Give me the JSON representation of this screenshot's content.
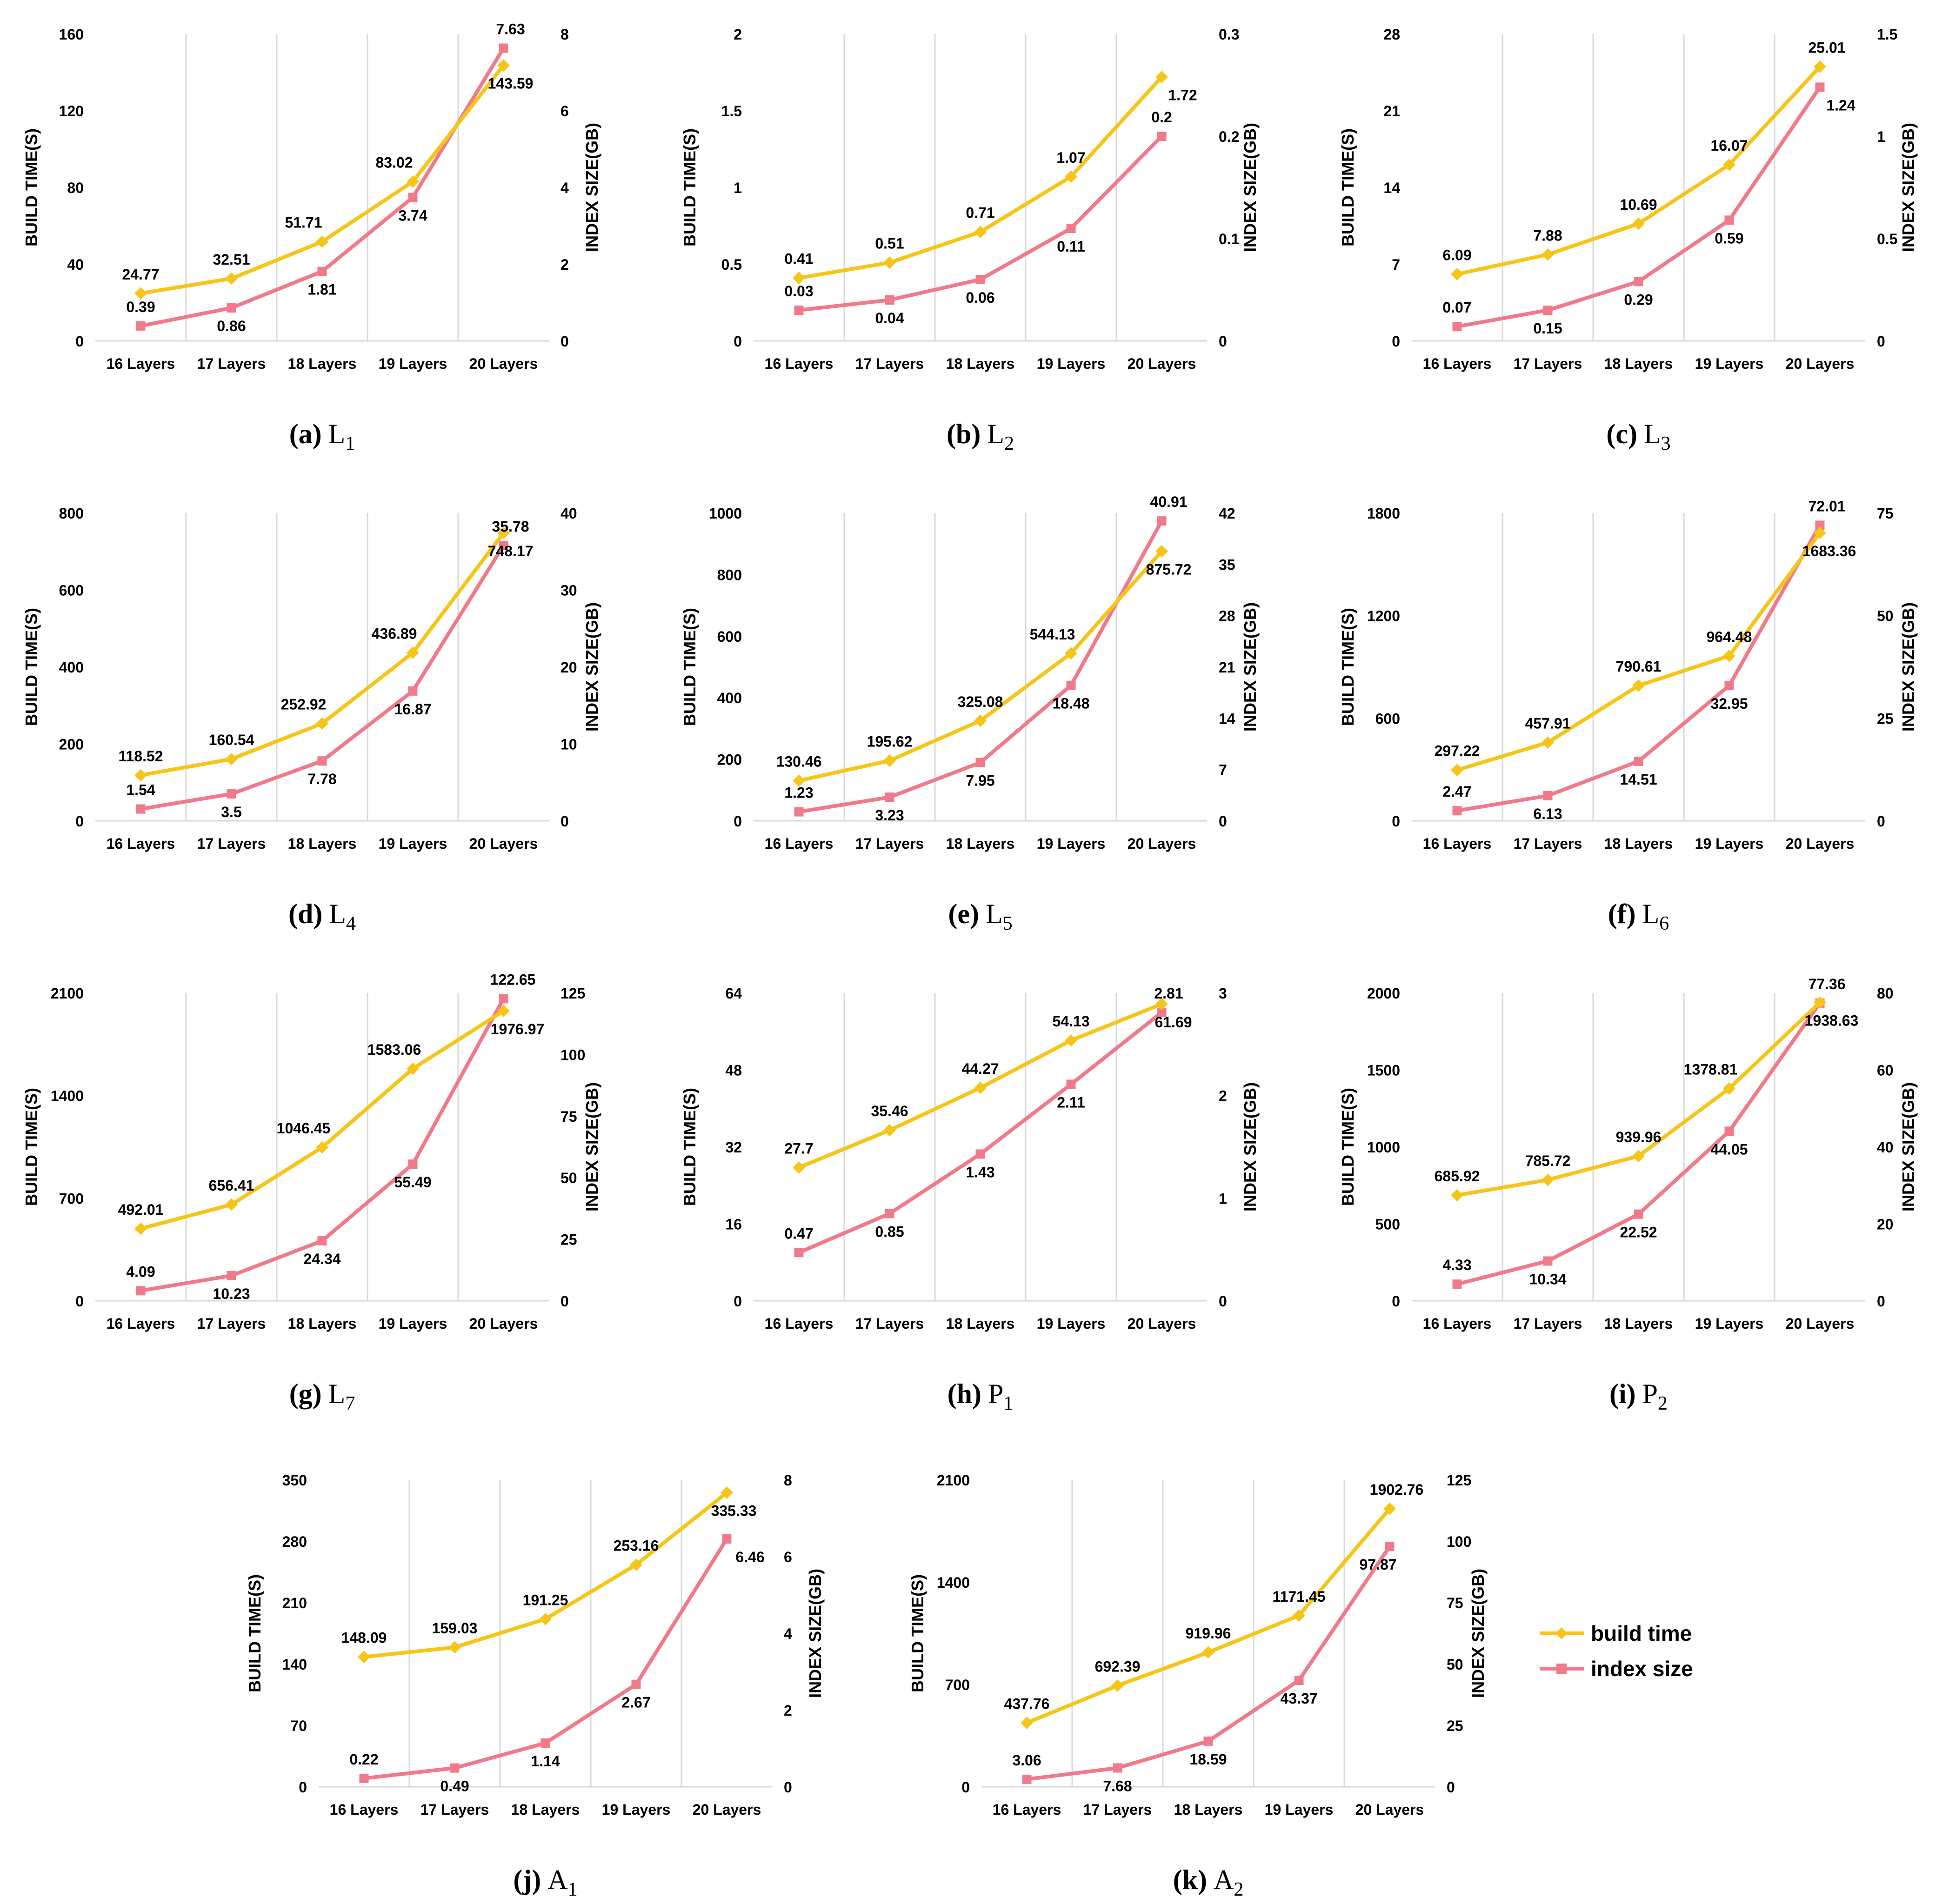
{
  "legend": {
    "build_label": "build time",
    "index_label": "index size",
    "build_color": "#F5C518",
    "index_color": "#F07A8A"
  },
  "chart_data": [
    {
      "type": "line",
      "id": "a",
      "caption_id": "(a)",
      "caption_main": "L",
      "caption_sub": "1",
      "categories": [
        "16 Layers",
        "17 Layers",
        "18 Layers",
        "19 Layers",
        "20 Layers"
      ],
      "ylabel_left": "BUILD TIME(S)",
      "ylabel_right": "INDEX SIZE(GB)",
      "ylim_left": [
        0,
        160
      ],
      "yticks_left": [
        "0",
        "40",
        "80",
        "120",
        "160"
      ],
      "ylim_right": [
        0,
        8
      ],
      "yticks_right": [
        "0",
        "2",
        "4",
        "6",
        "8"
      ],
      "series": [
        {
          "name": "build time",
          "axis": "left",
          "values": [
            24.77,
            32.51,
            51.71,
            83.02,
            143.59
          ],
          "labels": [
            "24.77",
            "32.51",
            "51.71",
            "83.02",
            "143.59"
          ]
        },
        {
          "name": "index size",
          "axis": "right",
          "values": [
            0.39,
            0.86,
            1.81,
            3.74,
            7.63
          ],
          "labels": [
            "0.39",
            "0.86",
            "1.81",
            "3.74",
            "7.63"
          ]
        }
      ]
    },
    {
      "type": "line",
      "id": "b",
      "caption_id": "(b)",
      "caption_main": "L",
      "caption_sub": "2",
      "categories": [
        "16 Layers",
        "17 Layers",
        "18 Layers",
        "19 Layers",
        "20 Layers"
      ],
      "ylabel_left": "BUILD TIME(S)",
      "ylabel_right": "INDEX SIZE(GB)",
      "ylim_left": [
        0,
        2
      ],
      "yticks_left": [
        "0",
        "0.5",
        "1",
        "1.5",
        "2"
      ],
      "ylim_right": [
        0,
        0.3
      ],
      "yticks_right": [
        "0",
        "0.1",
        "0.2",
        "0.3"
      ],
      "series": [
        {
          "name": "build time",
          "axis": "left",
          "values": [
            0.41,
            0.51,
            0.71,
            1.07,
            1.72
          ],
          "labels": [
            "0.41",
            "0.51",
            "0.71",
            "1.07",
            "1.72"
          ]
        },
        {
          "name": "index size",
          "axis": "right",
          "values": [
            0.03,
            0.04,
            0.06,
            0.11,
            0.2
          ],
          "labels": [
            "0.03",
            "0.04",
            "0.06",
            "0.11",
            "0.2"
          ]
        }
      ]
    },
    {
      "type": "line",
      "id": "c",
      "caption_id": "(c)",
      "caption_main": "L",
      "caption_sub": "3",
      "categories": [
        "16 Layers",
        "17 Layers",
        "18 Layers",
        "19 Layers",
        "20 Layers"
      ],
      "ylabel_left": "BUILD TIME(S)",
      "ylabel_right": "INDEX SIZE(GB)",
      "ylim_left": [
        0,
        28
      ],
      "yticks_left": [
        "0",
        "7",
        "14",
        "21",
        "28"
      ],
      "ylim_right": [
        0,
        1.5
      ],
      "yticks_right": [
        "0",
        "0.5",
        "1",
        "1.5"
      ],
      "series": [
        {
          "name": "build time",
          "axis": "left",
          "values": [
            6.09,
            7.88,
            10.69,
            16.07,
            25.01
          ],
          "labels": [
            "6.09",
            "7.88",
            "10.69",
            "16.07",
            "25.01"
          ]
        },
        {
          "name": "index size",
          "axis": "right",
          "values": [
            0.07,
            0.15,
            0.29,
            0.59,
            1.24
          ],
          "labels": [
            "0.07",
            "0.15",
            "0.29",
            "0.59",
            "1.24"
          ]
        }
      ]
    },
    {
      "type": "line",
      "id": "d",
      "caption_id": "(d)",
      "caption_main": "L",
      "caption_sub": "4",
      "categories": [
        "16 Layers",
        "17 Layers",
        "18 Layers",
        "19 Layers",
        "20 Layers"
      ],
      "ylabel_left": "BUILD TIME(S)",
      "ylabel_right": "INDEX SIZE(GB)",
      "ylim_left": [
        0,
        800
      ],
      "yticks_left": [
        "0",
        "200",
        "400",
        "600",
        "800"
      ],
      "ylim_right": [
        0,
        40
      ],
      "yticks_right": [
        "0",
        "10",
        "20",
        "30",
        "40"
      ],
      "series": [
        {
          "name": "build time",
          "axis": "left",
          "values": [
            118.52,
            160.54,
            252.92,
            436.89,
            748.17
          ],
          "labels": [
            "118.52",
            "160.54",
            "252.92",
            "436.89",
            "748.17"
          ]
        },
        {
          "name": "index size",
          "axis": "right",
          "values": [
            1.54,
            3.5,
            7.78,
            16.87,
            35.78
          ],
          "labels": [
            "1.54",
            "3.5",
            "7.78",
            "16.87",
            "35.78"
          ]
        }
      ]
    },
    {
      "type": "line",
      "id": "e",
      "caption_id": "(e)",
      "caption_main": "L",
      "caption_sub": "5",
      "categories": [
        "16 Layers",
        "17 Layers",
        "18 Layers",
        "19 Layers",
        "20 Layers"
      ],
      "ylabel_left": "BUILD TIME(S)",
      "ylabel_right": "INDEX SIZE(GB)",
      "ylim_left": [
        0,
        1000
      ],
      "yticks_left": [
        "0",
        "200",
        "400",
        "600",
        "800",
        "1000"
      ],
      "ylim_right": [
        0,
        42
      ],
      "yticks_right": [
        "0",
        "7",
        "14",
        "21",
        "28",
        "35",
        "42"
      ],
      "series": [
        {
          "name": "build time",
          "axis": "left",
          "values": [
            130.46,
            195.62,
            325.08,
            544.13,
            875.72
          ],
          "labels": [
            "130.46",
            "195.62",
            "325.08",
            "544.13",
            "875.72"
          ]
        },
        {
          "name": "index size",
          "axis": "right",
          "values": [
            1.23,
            3.23,
            7.95,
            18.48,
            40.91
          ],
          "labels": [
            "1.23",
            "3.23",
            "7.95",
            "18.48",
            "40.91"
          ]
        }
      ]
    },
    {
      "type": "line",
      "id": "f",
      "caption_id": "(f)",
      "caption_main": "L",
      "caption_sub": "6",
      "categories": [
        "16 Layers",
        "17 Layers",
        "18 Layers",
        "19 Layers",
        "20 Layers"
      ],
      "ylabel_left": "BUILD TIME(S)",
      "ylabel_right": "INDEX SIZE(GB)",
      "ylim_left": [
        0,
        1800
      ],
      "yticks_left": [
        "0",
        "600",
        "1200",
        "1800"
      ],
      "ylim_right": [
        0,
        75
      ],
      "yticks_right": [
        "0",
        "25",
        "50",
        "75"
      ],
      "series": [
        {
          "name": "build time",
          "axis": "left",
          "values": [
            297.22,
            457.91,
            790.61,
            964.48,
            1683.36
          ],
          "labels": [
            "297.22",
            "457.91",
            "790.61",
            "964.48",
            "1683.36"
          ]
        },
        {
          "name": "index size",
          "axis": "right",
          "values": [
            2.47,
            6.13,
            14.51,
            32.95,
            72.01
          ],
          "labels": [
            "2.47",
            "6.13",
            "14.51",
            "32.95",
            "72.01"
          ]
        }
      ]
    },
    {
      "type": "line",
      "id": "g",
      "caption_id": "(g)",
      "caption_main": "L",
      "caption_sub": "7",
      "categories": [
        "16 Layers",
        "17 Layers",
        "18 Layers",
        "19 Layers",
        "20 Layers"
      ],
      "ylabel_left": "BUILD TIME(S)",
      "ylabel_right": "INDEX SIZE(GB)",
      "ylim_left": [
        0,
        2100
      ],
      "yticks_left": [
        "0",
        "700",
        "1400",
        "2100"
      ],
      "ylim_right": [
        0,
        125
      ],
      "yticks_right": [
        "0",
        "25",
        "50",
        "75",
        "100",
        "125"
      ],
      "series": [
        {
          "name": "build time",
          "axis": "left",
          "values": [
            492.01,
            656.41,
            1046.45,
            1583.06,
            1976.97
          ],
          "labels": [
            "492.01",
            "656.41",
            "1046.45",
            "1583.06",
            "1976.97"
          ]
        },
        {
          "name": "index size",
          "axis": "right",
          "values": [
            4.09,
            10.23,
            24.34,
            55.49,
            122.65
          ],
          "labels": [
            "4.09",
            "10.23",
            "24.34",
            "55.49",
            "122.65"
          ]
        }
      ]
    },
    {
      "type": "line",
      "id": "h",
      "caption_id": "(h)",
      "caption_main": "P",
      "caption_sub": "1",
      "categories": [
        "16 Layers",
        "17 Layers",
        "18 Layers",
        "19 Layers",
        "20 Layers"
      ],
      "ylabel_left": "BUILD TIME(S)",
      "ylabel_right": "INDEX SIZE(GB)",
      "ylim_left": [
        0,
        64
      ],
      "yticks_left": [
        "0",
        "16",
        "32",
        "48",
        "64"
      ],
      "ylim_right": [
        0,
        3
      ],
      "yticks_right": [
        "0",
        "1",
        "2",
        "3"
      ],
      "series": [
        {
          "name": "build time",
          "axis": "left",
          "values": [
            27.7,
            35.46,
            44.27,
            54.13,
            61.69
          ],
          "labels": [
            "27.7",
            "35.46",
            "44.27",
            "54.13",
            "61.69"
          ]
        },
        {
          "name": "index size",
          "axis": "right",
          "values": [
            0.47,
            0.85,
            1.43,
            2.11,
            2.81
          ],
          "labels": [
            "0.47",
            "0.85",
            "1.43",
            "2.11",
            "2.81"
          ]
        }
      ]
    },
    {
      "type": "line",
      "id": "i",
      "caption_id": "(i)",
      "caption_main": "P",
      "caption_sub": "2",
      "categories": [
        "16 Layers",
        "17 Layers",
        "18 Layers",
        "19 Layers",
        "20 Layers"
      ],
      "ylabel_left": "BUILD TIME(S)",
      "ylabel_right": "INDEX SIZE(GB)",
      "ylim_left": [
        0,
        2000
      ],
      "yticks_left": [
        "0",
        "500",
        "1000",
        "1500",
        "2000"
      ],
      "ylim_right": [
        0,
        80
      ],
      "yticks_right": [
        "0",
        "20",
        "40",
        "60",
        "80"
      ],
      "series": [
        {
          "name": "build time",
          "axis": "left",
          "values": [
            685.92,
            785.72,
            939.96,
            1378.81,
            1938.63
          ],
          "labels": [
            "685.92",
            "785.72",
            "939.96",
            "1378.81",
            "1938.63"
          ]
        },
        {
          "name": "index size",
          "axis": "right",
          "values": [
            4.33,
            10.34,
            22.52,
            44.05,
            77.36
          ],
          "labels": [
            "4.33",
            "10.34",
            "22.52",
            "44.05",
            "77.36"
          ]
        }
      ]
    },
    {
      "type": "line",
      "id": "j",
      "caption_id": "(j)",
      "caption_main": "A",
      "caption_sub": "1",
      "categories": [
        "16 Layers",
        "17 Layers",
        "18 Layers",
        "19 Layers",
        "20 Layers"
      ],
      "ylabel_left": "BUILD TIME(S)",
      "ylabel_right": "INDEX SIZE(GB)",
      "ylim_left": [
        0,
        350
      ],
      "yticks_left": [
        "0",
        "70",
        "140",
        "210",
        "280",
        "350"
      ],
      "ylim_right": [
        0,
        8
      ],
      "yticks_right": [
        "0",
        "2",
        "4",
        "6",
        "8"
      ],
      "series": [
        {
          "name": "build time",
          "axis": "left",
          "values": [
            148.09,
            159.03,
            191.25,
            253.16,
            335.33
          ],
          "labels": [
            "148.09",
            "159.03",
            "191.25",
            "253.16",
            "335.33"
          ]
        },
        {
          "name": "index size",
          "axis": "right",
          "values": [
            0.22,
            0.49,
            1.14,
            2.67,
            6.46
          ],
          "labels": [
            "0.22",
            "0.49",
            "1.14",
            "2.67",
            "6.46"
          ]
        }
      ]
    },
    {
      "type": "line",
      "id": "k",
      "caption_id": "(k)",
      "caption_main": "A",
      "caption_sub": "2",
      "categories": [
        "16 Layers",
        "17 Layers",
        "18 Layers",
        "19 Layers",
        "20 Layers"
      ],
      "ylabel_left": "BUILD TIME(S)",
      "ylabel_right": "INDEX SIZE(GB)",
      "ylim_left": [
        0,
        2100
      ],
      "yticks_left": [
        "0",
        "700",
        "1400",
        "2100"
      ],
      "ylim_right": [
        0,
        125
      ],
      "yticks_right": [
        "0",
        "25",
        "50",
        "75",
        "100",
        "125"
      ],
      "series": [
        {
          "name": "build time",
          "axis": "left",
          "values": [
            437.76,
            692.39,
            919.96,
            1171.45,
            1902.76
          ],
          "labels": [
            "437.76",
            "692.39",
            "919.96",
            "1171.45",
            "1902.76"
          ]
        },
        {
          "name": "index size",
          "axis": "right",
          "values": [
            3.06,
            7.68,
            18.59,
            43.37,
            97.87
          ],
          "labels": [
            "3.06",
            "7.68",
            "18.59",
            "43.37",
            "97.87"
          ]
        }
      ]
    }
  ]
}
